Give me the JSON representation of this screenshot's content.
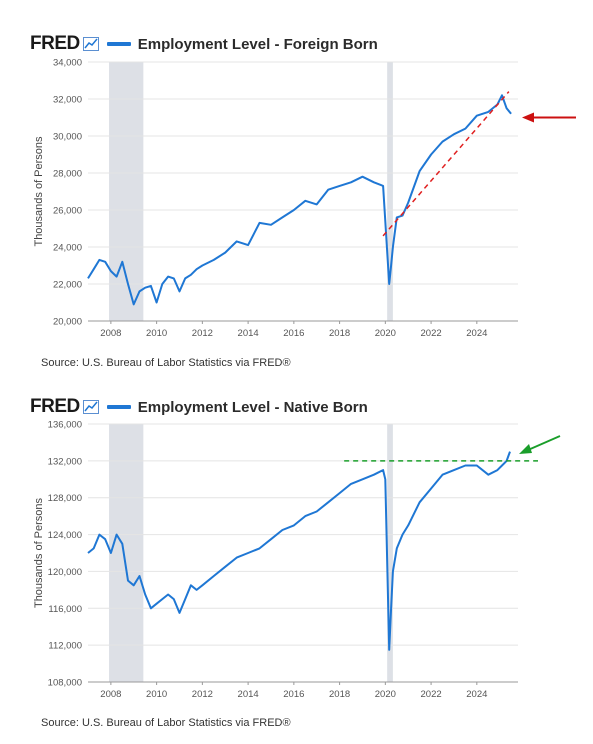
{
  "charts": [
    {
      "brand": "FRED",
      "title": "Employment Level - Foreign Born",
      "source": "Source: U.S. Bureau of Labor Statistics via FRED®",
      "ylabel": "Thousands of Persons",
      "line_color": "#1f77d4",
      "recession_color": "#dde0e6",
      "annotation": {
        "type": "dashed trendline",
        "color": "#e02020",
        "arrow_color": "#cc1010"
      }
    },
    {
      "brand": "FRED",
      "title": "Employment Level - Native Born",
      "source": "Source: U.S. Bureau of Labor Statistics via FRED®",
      "ylabel": "Thousands of Persons",
      "line_color": "#1f77d4",
      "recession_color": "#dde0e6",
      "annotation": {
        "type": "dashed horizontal level",
        "color": "#1a9e2a",
        "arrow_color": "#1a9e2a"
      }
    }
  ],
  "chart_data": [
    {
      "type": "line",
      "title": "Employment Level - Foreign Born",
      "ylabel": "Thousands of Persons",
      "xlim": [
        2007.0,
        2025.8
      ],
      "ylim": [
        20000,
        34000
      ],
      "xticks": [
        2008,
        2010,
        2012,
        2014,
        2016,
        2018,
        2020,
        2022,
        2024
      ],
      "yticks": [
        20000,
        22000,
        24000,
        26000,
        28000,
        30000,
        32000,
        34000
      ],
      "ytick_labels": [
        "20,000",
        "22,000",
        "24,000",
        "26,000",
        "28,000",
        "30,000",
        "32,000",
        "34,000"
      ],
      "recessions": [
        [
          2007.92,
          2009.42
        ],
        [
          2020.08,
          2020.33
        ]
      ],
      "grid": "horizontal",
      "trendline": {
        "from": [
          2019.9,
          24600
        ],
        "to": [
          2025.4,
          32400
        ]
      },
      "series": [
        {
          "x": [
            2007.0,
            2007.25,
            2007.5,
            2007.75,
            2008.0,
            2008.25,
            2008.5,
            2008.75,
            2009.0,
            2009.25,
            2009.5,
            2009.75,
            2010.0,
            2010.25,
            2010.5,
            2010.75,
            2011.0,
            2011.25,
            2011.5,
            2011.75,
            2012.0,
            2012.5,
            2013.0,
            2013.5,
            2014.0,
            2014.5,
            2015.0,
            2015.5,
            2016.0,
            2016.5,
            2017.0,
            2017.5,
            2018.0,
            2018.5,
            2019.0,
            2019.5,
            2019.9,
            2020.17,
            2020.25,
            2020.33,
            2020.5,
            2020.75,
            2021.0,
            2021.5,
            2022.0,
            2022.5,
            2023.0,
            2023.5,
            2024.0,
            2024.5,
            2024.9,
            2025.1,
            2025.3,
            2025.5
          ],
          "y": [
            22300,
            22800,
            23300,
            23200,
            22700,
            22400,
            23200,
            22000,
            20900,
            21600,
            21800,
            21900,
            21000,
            22000,
            22400,
            22300,
            21600,
            22300,
            22500,
            22800,
            23000,
            23300,
            23700,
            24300,
            24100,
            25300,
            25200,
            25600,
            26000,
            26500,
            26300,
            27100,
            27300,
            27500,
            27800,
            27500,
            27300,
            22000,
            23000,
            24000,
            25600,
            25700,
            26400,
            28100,
            29000,
            29700,
            30100,
            30400,
            31100,
            31300,
            31700,
            32200,
            31500,
            31200
          ]
        }
      ]
    },
    {
      "type": "line",
      "title": "Employment Level - Native Born",
      "ylabel": "Thousands of Persons",
      "xlim": [
        2007.0,
        2025.8
      ],
      "ylim": [
        108000,
        136000
      ],
      "xticks": [
        2008,
        2010,
        2012,
        2014,
        2016,
        2018,
        2020,
        2022,
        2024
      ],
      "yticks": [
        108000,
        112000,
        116000,
        120000,
        124000,
        128000,
        132000,
        136000
      ],
      "ytick_labels": [
        "108,000",
        "112,000",
        "116,000",
        "120,000",
        "124,000",
        "128,000",
        "132,000",
        "136,000"
      ],
      "recessions": [
        [
          2007.92,
          2009.42
        ],
        [
          2020.08,
          2020.33
        ]
      ],
      "grid": "horizontal",
      "reference_level": {
        "y": 132000,
        "from": 2018.2,
        "to": 2025.8
      },
      "series": [
        {
          "x": [
            2007.0,
            2007.25,
            2007.5,
            2007.75,
            2008.0,
            2008.25,
            2008.5,
            2008.75,
            2009.0,
            2009.25,
            2009.5,
            2009.75,
            2010.0,
            2010.25,
            2010.5,
            2010.75,
            2011.0,
            2011.25,
            2011.5,
            2011.75,
            2012.0,
            2012.5,
            2013.0,
            2013.5,
            2014.0,
            2014.5,
            2015.0,
            2015.5,
            2016.0,
            2016.5,
            2017.0,
            2017.5,
            2018.0,
            2018.5,
            2019.0,
            2019.5,
            2019.9,
            2020.0,
            2020.17,
            2020.25,
            2020.33,
            2020.5,
            2020.75,
            2021.0,
            2021.5,
            2022.0,
            2022.5,
            2023.0,
            2023.5,
            2024.0,
            2024.5,
            2024.9,
            2025.1,
            2025.3,
            2025.45
          ],
          "y": [
            122000,
            122500,
            124000,
            123500,
            122000,
            124000,
            123000,
            119000,
            118500,
            119500,
            117500,
            116000,
            116500,
            117000,
            117500,
            117000,
            115500,
            117000,
            118500,
            118000,
            118500,
            119500,
            120500,
            121500,
            122000,
            122500,
            123500,
            124500,
            125000,
            126000,
            126500,
            127500,
            128500,
            129500,
            130000,
            130500,
            131000,
            130000,
            111500,
            116000,
            120000,
            122500,
            124000,
            125000,
            127500,
            129000,
            130500,
            131000,
            131500,
            131500,
            130500,
            131000,
            131500,
            132000,
            133000
          ]
        }
      ]
    }
  ]
}
